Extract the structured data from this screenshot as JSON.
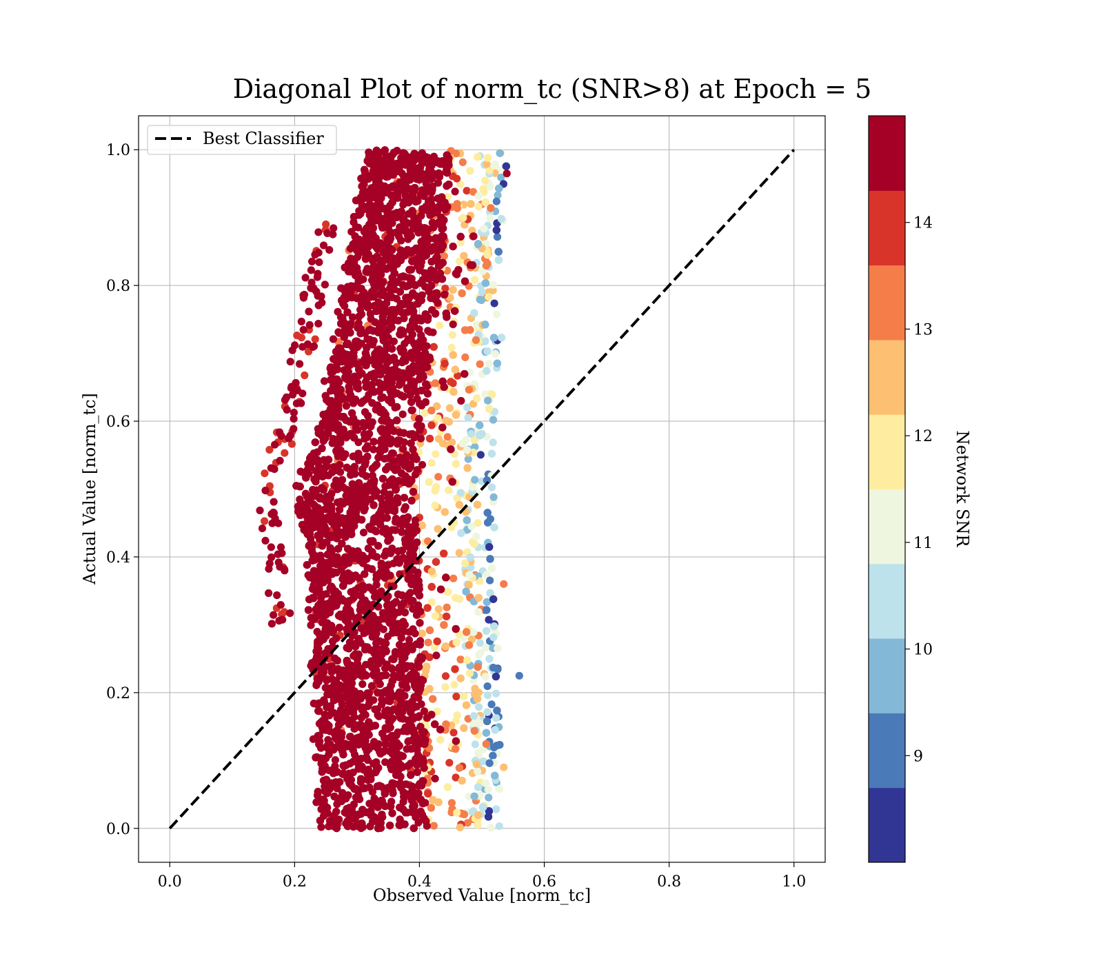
{
  "chart_data": {
    "type": "scatter",
    "title": "Diagonal Plot of norm_tc (SNR>8) at Epoch = 5",
    "xlabel": "Observed Value [norm_tc]",
    "ylabel": "Actual Value [norm_tc]",
    "xlim": [
      -0.05,
      1.05
    ],
    "ylim": [
      -0.05,
      1.05
    ],
    "xticks": [
      "0.0",
      "0.2",
      "0.4",
      "0.6",
      "0.8",
      "1.0"
    ],
    "yticks": [
      "0.0",
      "0.2",
      "0.4",
      "0.6",
      "0.8",
      "1.0"
    ],
    "grid": true,
    "legend": {
      "placement": "upper-left",
      "entries": [
        {
          "label": "Best Classifier",
          "style": "dashed",
          "color": "#000000"
        }
      ]
    },
    "reference_line": {
      "label": "Best Classifier",
      "x": [
        0.0,
        1.0
      ],
      "y": [
        0.0,
        1.0
      ]
    },
    "point_cloud": {
      "description_points": [
        {
          "y": 1.0,
          "x_min": 0.3,
          "x_max": 0.54
        },
        {
          "y": 0.8,
          "x_min": 0.26,
          "x_max": 0.54
        },
        {
          "y": 0.6,
          "x_min": 0.22,
          "x_max": 0.52
        },
        {
          "y": 0.5,
          "x_min": 0.18,
          "x_max": 0.52
        },
        {
          "y": 0.4,
          "x_min": 0.2,
          "x_max": 0.52
        },
        {
          "y": 0.2,
          "x_min": 0.21,
          "x_max": 0.53
        },
        {
          "y": 0.0,
          "x_min": 0.22,
          "x_max": 0.53
        }
      ],
      "outliers": [
        {
          "x": 0.56,
          "y": 0.225,
          "snr": 9.3
        },
        {
          "x": 0.54,
          "y": 0.965,
          "snr": 14.8
        },
        {
          "x": 0.163,
          "y": 0.463,
          "snr": 14.8
        },
        {
          "x": 0.535,
          "y": 0.36,
          "snr": 13.3
        },
        {
          "x": 0.535,
          "y": 0.09,
          "snr": 12.2
        }
      ]
    },
    "colorbar": {
      "label": "Network SNR",
      "range": [
        8.0,
        15.0
      ],
      "ticks": [
        "9",
        "10",
        "11",
        "12",
        "13",
        "14"
      ],
      "bins": [
        {
          "from": 8.0,
          "to": 8.7,
          "color": "#313695"
        },
        {
          "from": 8.7,
          "to": 9.4,
          "color": "#4a7ab8"
        },
        {
          "from": 9.4,
          "to": 10.1,
          "color": "#83b8d7"
        },
        {
          "from": 10.1,
          "to": 10.8,
          "color": "#bde2ec"
        },
        {
          "from": 10.8,
          "to": 11.5,
          "color": "#eef6e0"
        },
        {
          "from": 11.5,
          "to": 12.2,
          "color": "#feeda1"
        },
        {
          "from": 12.2,
          "to": 12.9,
          "color": "#fdbf71"
        },
        {
          "from": 12.9,
          "to": 13.6,
          "color": "#f57d4a"
        },
        {
          "from": 13.6,
          "to": 14.3,
          "color": "#d93429"
        },
        {
          "from": 14.3,
          "to": 15.0,
          "color": "#a50026"
        }
      ]
    }
  }
}
